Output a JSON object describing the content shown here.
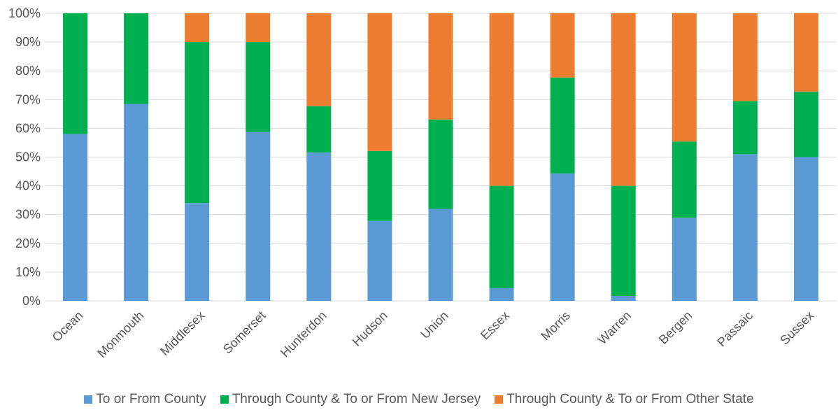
{
  "chart_data": {
    "type": "bar",
    "stacked": true,
    "categories": [
      "Ocean",
      "Monmouth",
      "Middlesex",
      "Somerset",
      "Hunterdon",
      "Hudson",
      "Union",
      "Essex",
      "Morris",
      "Warren",
      "Bergen",
      "Passaic",
      "Sussex"
    ],
    "series": [
      {
        "name": "To or From County",
        "color": "#5B9BD5",
        "values": [
          58,
          68.5,
          34,
          58.7,
          51.6,
          27.8,
          32,
          4.4,
          44.3,
          1.7,
          28.9,
          51,
          50
        ]
      },
      {
        "name": "Through County & To or From New Jersey",
        "color": "#00B050",
        "values": [
          42,
          31.5,
          56,
          31.3,
          16.1,
          24.3,
          31.1,
          35.6,
          33.4,
          38.3,
          26.5,
          18.5,
          22.8
        ]
      },
      {
        "name": "Through County & To or From Other State",
        "color": "#ED7D31",
        "values": [
          0,
          0,
          10,
          10,
          32.3,
          47.9,
          36.9,
          60,
          22.3,
          60,
          44.6,
          30.5,
          27.2
        ]
      }
    ],
    "ylim": [
      0,
      100
    ],
    "yticks": [
      "0%",
      "10%",
      "20%",
      "30%",
      "40%",
      "50%",
      "60%",
      "70%",
      "80%",
      "90%",
      "100%"
    ],
    "grid": true,
    "legend_position": "bottom"
  }
}
